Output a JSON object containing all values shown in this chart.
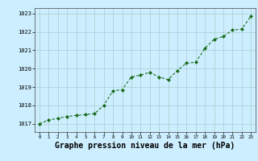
{
  "x": [
    0,
    1,
    2,
    3,
    4,
    5,
    6,
    7,
    8,
    9,
    10,
    11,
    12,
    13,
    14,
    15,
    16,
    17,
    18,
    19,
    20,
    21,
    22,
    23
  ],
  "y": [
    1017.0,
    1017.2,
    1017.3,
    1017.4,
    1017.45,
    1017.5,
    1017.55,
    1018.0,
    1018.8,
    1018.85,
    1019.55,
    1019.65,
    1019.8,
    1019.55,
    1019.4,
    1019.9,
    1020.3,
    1020.35,
    1021.1,
    1021.6,
    1021.75,
    1022.1,
    1022.15,
    1022.85
  ],
  "line_color": "#1a6b1a",
  "marker": "D",
  "marker_size": 2.0,
  "bg_color": "#cceeff",
  "grid_color": "#aacccc",
  "xlabel": "Graphe pression niveau de la mer (hPa)",
  "xlabel_fontsize": 7.0,
  "ylabel_ticks": [
    1017,
    1018,
    1019,
    1020,
    1021,
    1022,
    1023
  ],
  "xtick_labels": [
    "0",
    "1",
    "2",
    "3",
    "4",
    "5",
    "6",
    "7",
    "8",
    "9",
    "10",
    "11",
    "12",
    "13",
    "14",
    "15",
    "16",
    "17",
    "18",
    "19",
    "20",
    "21",
    "22",
    "23"
  ],
  "ylim": [
    1016.55,
    1023.3
  ],
  "xlim": [
    -0.5,
    23.5
  ]
}
